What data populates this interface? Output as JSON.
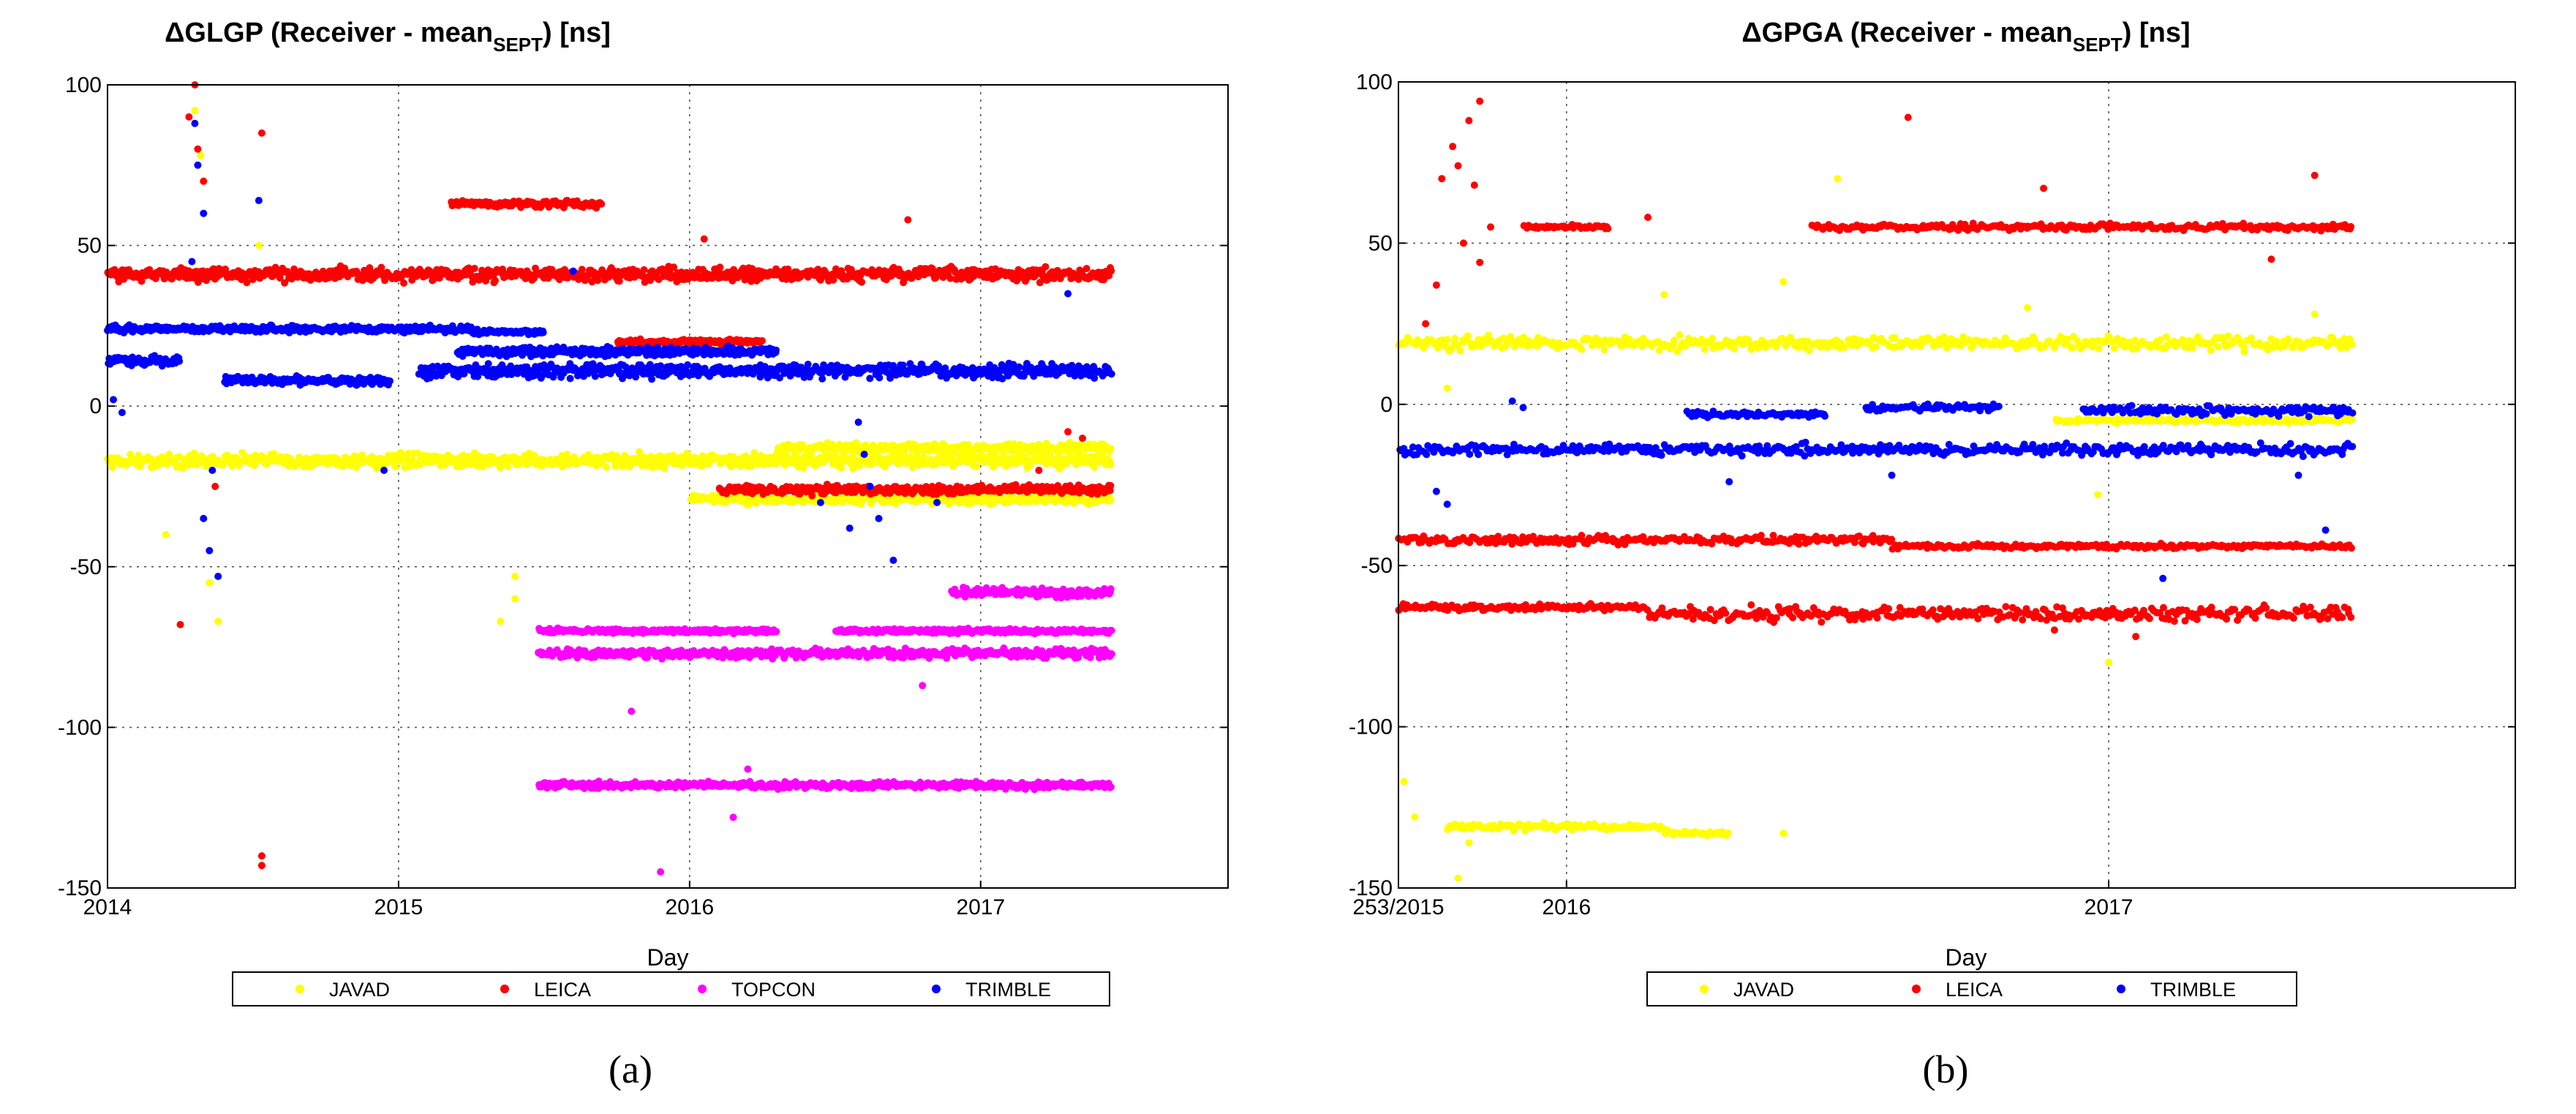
{
  "chart_data": [
    {
      "type": "scatter",
      "panel_label": "(a)",
      "title": {
        "prefix": "ΔGLGP (Receiver - mean",
        "subscript": "SEPT",
        "suffix": ") [ns]"
      },
      "xlabel": "Day",
      "ylabel": "",
      "xlim": [
        2014.0,
        2017.85
      ],
      "ylim": [
        -150,
        100
      ],
      "xticks": [
        2014,
        2015,
        2016,
        2017
      ],
      "xtick_labels": [
        "2014",
        "2015",
        "2016",
        "2017"
      ],
      "yticks": [
        100,
        50,
        0,
        -50,
        -100,
        -150
      ],
      "ytick_labels": [
        "100",
        "50",
        "0",
        "-50",
        "-100",
        "-150"
      ],
      "grid": true,
      "legend_position": "bottom",
      "series": [
        {
          "name": "JAVAD",
          "color": "#ffff00",
          "bands": [
            {
              "x": [
                2014.0,
                2017.45
              ],
              "y": -17,
              "spread": 3
            },
            {
              "x": [
                2016.0,
                2017.45
              ],
              "y": -29,
              "spread": 2
            },
            {
              "x": [
                2016.3,
                2017.45
              ],
              "y": -13,
              "spread": 2
            }
          ],
          "points": [
            {
              "x": 2014.2,
              "y": -40
            },
            {
              "x": 2014.35,
              "y": -55
            },
            {
              "x": 2014.38,
              "y": -67
            },
            {
              "x": 2014.3,
              "y": 92
            },
            {
              "x": 2014.32,
              "y": 78
            },
            {
              "x": 2014.52,
              "y": 50
            },
            {
              "x": 2015.35,
              "y": -67
            },
            {
              "x": 2015.4,
              "y": -60
            },
            {
              "x": 2015.4,
              "y": -53
            }
          ]
        },
        {
          "name": "LEICA",
          "color": "#ff0000",
          "bands": [
            {
              "x": [
                2014.0,
                2017.45
              ],
              "y": 41,
              "spread": 3
            },
            {
              "x": [
                2015.18,
                2015.7
              ],
              "y": 63,
              "spread": 1.5
            },
            {
              "x": [
                2016.1,
                2017.45
              ],
              "y": -26,
              "spread": 2
            },
            {
              "x": [
                2015.75,
                2016.25
              ],
              "y": 20,
              "spread": 1
            }
          ],
          "points": [
            {
              "x": 2014.3,
              "y": 100
            },
            {
              "x": 2014.28,
              "y": 90
            },
            {
              "x": 2014.31,
              "y": 80
            },
            {
              "x": 2014.33,
              "y": 70
            },
            {
              "x": 2014.25,
              "y": -68
            },
            {
              "x": 2014.37,
              "y": -25
            },
            {
              "x": 2014.53,
              "y": 85
            },
            {
              "x": 2014.53,
              "y": -140
            },
            {
              "x": 2014.53,
              "y": -143
            },
            {
              "x": 2016.75,
              "y": 58
            },
            {
              "x": 2017.3,
              "y": -8
            },
            {
              "x": 2017.35,
              "y": -10
            },
            {
              "x": 2016.05,
              "y": 52
            },
            {
              "x": 2017.2,
              "y": -20
            }
          ]
        },
        {
          "name": "TOPCON",
          "color": "#ff00ff",
          "bands": [
            {
              "x": [
                2015.48,
                2017.45
              ],
              "y": -77,
              "spread": 2
            },
            {
              "x": [
                2015.48,
                2016.3
              ],
              "y": -70,
              "spread": 1
            },
            {
              "x": [
                2016.5,
                2017.45
              ],
              "y": -70,
              "spread": 1
            },
            {
              "x": [
                2016.9,
                2017.45
              ],
              "y": -58,
              "spread": 2
            },
            {
              "x": [
                2015.48,
                2017.45
              ],
              "y": -118,
              "spread": 1.5
            }
          ],
          "points": [
            {
              "x": 2015.8,
              "y": -95
            },
            {
              "x": 2015.9,
              "y": -145
            },
            {
              "x": 2016.15,
              "y": -128
            },
            {
              "x": 2016.2,
              "y": -113
            },
            {
              "x": 2016.8,
              "y": -87
            }
          ]
        },
        {
          "name": "TRIMBLE",
          "color": "#0000ff",
          "bands": [
            {
              "x": [
                2014.0,
                2015.25
              ],
              "y": 24,
              "spread": 1.5
            },
            {
              "x": [
                2014.0,
                2014.25
              ],
              "y": 14,
              "spread": 2
            },
            {
              "x": [
                2014.4,
                2014.97
              ],
              "y": 8,
              "spread": 2
            },
            {
              "x": [
                2015.07,
                2017.45
              ],
              "y": 11,
              "spread": 3
            },
            {
              "x": [
                2015.2,
                2016.3
              ],
              "y": 17,
              "spread": 2
            },
            {
              "x": [
                2015.25,
                2015.5
              ],
              "y": 23,
              "spread": 1
            }
          ],
          "points": [
            {
              "x": 2014.3,
              "y": 88
            },
            {
              "x": 2014.31,
              "y": 75
            },
            {
              "x": 2014.33,
              "y": 60
            },
            {
              "x": 2014.29,
              "y": 45
            },
            {
              "x": 2014.33,
              "y": -35
            },
            {
              "x": 2014.35,
              "y": -45
            },
            {
              "x": 2014.38,
              "y": -53
            },
            {
              "x": 2014.36,
              "y": -20
            },
            {
              "x": 2014.52,
              "y": 64
            },
            {
              "x": 2014.02,
              "y": 2
            },
            {
              "x": 2014.05,
              "y": -2
            },
            {
              "x": 2014.95,
              "y": -20
            },
            {
              "x": 2016.58,
              "y": -5
            },
            {
              "x": 2016.6,
              "y": -15
            },
            {
              "x": 2016.62,
              "y": -25
            },
            {
              "x": 2016.65,
              "y": -35
            },
            {
              "x": 2016.7,
              "y": -48
            },
            {
              "x": 2016.55,
              "y": -38
            },
            {
              "x": 2016.45,
              "y": -30
            },
            {
              "x": 2016.85,
              "y": -30
            },
            {
              "x": 2015.6,
              "y": 42
            },
            {
              "x": 2017.3,
              "y": 35
            }
          ]
        }
      ]
    },
    {
      "type": "scatter",
      "panel_label": "(b)",
      "title": {
        "prefix": "ΔGPGA (Receiver - mean",
        "subscript": "SEPT",
        "suffix": ") [ns]"
      },
      "xlabel": "Day",
      "ylabel": "",
      "xlim": [
        2015.69,
        2017.75
      ],
      "ylim": [
        -150,
        100
      ],
      "xticks": [
        2015.69,
        2016,
        2017
      ],
      "xtick_labels": [
        "253/2015",
        "2016",
        "2017"
      ],
      "yticks": [
        100,
        50,
        0,
        -50,
        -100,
        -150
      ],
      "ytick_labels": [
        "100",
        "50",
        "0",
        "-50",
        "-100",
        "-150"
      ],
      "grid": true,
      "legend_position": "bottom",
      "series": [
        {
          "name": "JAVAD",
          "color": "#ffff00",
          "bands": [
            {
              "x": [
                2015.69,
                2017.45
              ],
              "y": 19,
              "spread": 3
            },
            {
              "x": [
                2015.78,
                2016.18
              ],
              "y": -131,
              "spread": 1.5
            },
            {
              "x": [
                2016.18,
                2016.3
              ],
              "y": -133,
              "spread": 1
            },
            {
              "x": [
                2016.9,
                2017.45
              ],
              "y": -5,
              "spread": 1
            }
          ],
          "points": [
            {
              "x": 2015.7,
              "y": -117
            },
            {
              "x": 2015.72,
              "y": -128
            },
            {
              "x": 2015.8,
              "y": -147
            },
            {
              "x": 2015.82,
              "y": -136
            },
            {
              "x": 2016.4,
              "y": -133
            },
            {
              "x": 2016.5,
              "y": 70
            },
            {
              "x": 2016.18,
              "y": 34
            },
            {
              "x": 2016.4,
              "y": 38
            },
            {
              "x": 2016.98,
              "y": -28
            },
            {
              "x": 2017.0,
              "y": -80
            },
            {
              "x": 2016.85,
              "y": 30
            },
            {
              "x": 2017.38,
              "y": 28
            },
            {
              "x": 2015.78,
              "y": 5
            }
          ]
        },
        {
          "name": "LEICA",
          "color": "#ff0000",
          "bands": [
            {
              "x": [
                2015.69,
                2016.6
              ],
              "y": -42,
              "spread": 2
            },
            {
              "x": [
                2016.6,
                2017.45
              ],
              "y": -44,
              "spread": 1
            },
            {
              "x": [
                2015.69,
                2016.15
              ],
              "y": -63,
              "spread": 1.5
            },
            {
              "x": [
                2016.15,
                2017.45
              ],
              "y": -65,
              "spread": 3
            },
            {
              "x": [
                2015.92,
                2016.08
              ],
              "y": 55,
              "spread": 1
            },
            {
              "x": [
                2016.45,
                2017.45
              ],
              "y": 55,
              "spread": 1.5
            }
          ],
          "points": [
            {
              "x": 2015.77,
              "y": 70
            },
            {
              "x": 2015.79,
              "y": 80
            },
            {
              "x": 2015.82,
              "y": 88
            },
            {
              "x": 2015.84,
              "y": 94
            },
            {
              "x": 2015.8,
              "y": 74
            },
            {
              "x": 2015.83,
              "y": 68
            },
            {
              "x": 2015.81,
              "y": 50
            },
            {
              "x": 2015.84,
              "y": 44
            },
            {
              "x": 2015.86,
              "y": 55
            },
            {
              "x": 2015.76,
              "y": 37
            },
            {
              "x": 2015.74,
              "y": 25
            },
            {
              "x": 2016.63,
              "y": 89
            },
            {
              "x": 2016.88,
              "y": 67
            },
            {
              "x": 2017.38,
              "y": 71
            },
            {
              "x": 2017.3,
              "y": 45
            },
            {
              "x": 2016.15,
              "y": 58
            },
            {
              "x": 2016.9,
              "y": -70
            },
            {
              "x": 2017.05,
              "y": -72
            }
          ]
        },
        {
          "name": "TRIMBLE",
          "color": "#0000ff",
          "bands": [
            {
              "x": [
                2015.69,
                2017.45
              ],
              "y": -14,
              "spread": 2.5
            },
            {
              "x": [
                2016.22,
                2016.48
              ],
              "y": -3,
              "spread": 1.5
            },
            {
              "x": [
                2016.55,
                2016.8
              ],
              "y": -1,
              "spread": 1.5
            },
            {
              "x": [
                2016.95,
                2017.45
              ],
              "y": -2,
              "spread": 2
            }
          ],
          "points": [
            {
              "x": 2015.76,
              "y": -27
            },
            {
              "x": 2015.78,
              "y": -31
            },
            {
              "x": 2015.9,
              "y": 1
            },
            {
              "x": 2015.92,
              "y": -1
            },
            {
              "x": 2016.3,
              "y": -24
            },
            {
              "x": 2016.6,
              "y": -22
            },
            {
              "x": 2017.1,
              "y": -54
            },
            {
              "x": 2017.4,
              "y": -39
            },
            {
              "x": 2017.35,
              "y": -22
            }
          ]
        }
      ]
    }
  ]
}
